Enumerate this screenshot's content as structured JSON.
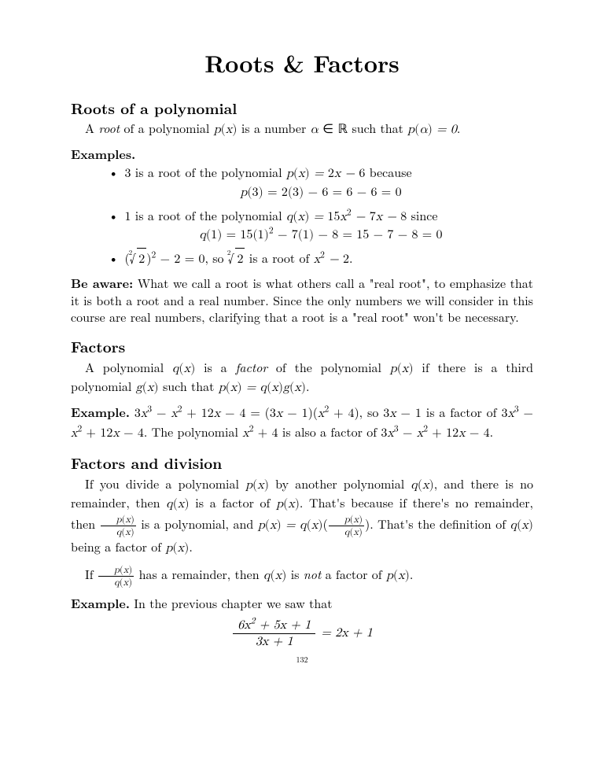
{
  "title": "Roots & Factors",
  "sec1": "Roots of a polynomial",
  "intro": "A <span class=\"it\">root</span> of a polynomial <span class=\"math\">p<span class=\"rm\">(</span>x<span class=\"rm\">)</span></span> is a number <span class=\"math\">α</span> ∈ ℝ such that <span class=\"math\">p<span class=\"rm\">(</span>α<span class=\"rm\">)</span> = 0</span>.",
  "examples_label": "Examples.",
  "ex1_line": "3 is a root of the polynomial <span class=\"math\">p<span class=\"rm\">(</span>x<span class=\"rm\">)</span> = <span class=\"rm\">2</span>x − <span class=\"rm\">6</span></span> because",
  "ex1_calc": "p<span class=\"rm\">(3) = 2(3) − 6 = 6 − 6 = 0</span>",
  "ex2_line": "1 is a root of the polynomial <span class=\"math\">q<span class=\"rm\">(</span>x<span class=\"rm\">)</span> = <span class=\"rm\">15</span>x<sup><span class=\"rm\">2</span></sup> − <span class=\"rm\">7</span>x − <span class=\"rm\">8</span></span> since",
  "ex2_calc": "q<span class=\"rm\">(1) = 15(1)<sup>2</sup> − 7(1) − 8 = 15 − 7 − 8 = 0</span>",
  "ex3_line": "(<span class=\"sqrt\"><span class=\"idx\">2</span>√<span class=\"rad\">2</span></span>)<sup>2</sup> − 2 = 0, so <span class=\"sqrt\"><span class=\"idx\">2</span>√<span class=\"rad\">2</span></span> is a root of <span class=\"math\">x<sup><span class=\"rm\">2</span></sup> − <span class=\"rm\">2</span></span>.",
  "beaware_label": "Be aware:",
  "beaware": "What we call a root is what others call a \"real root\", to emphasize that it is both a root and a real number. Since the only numbers we will consider in this course are real numbers, clarifying that a root is a \"real root\" won't be necessary.",
  "sec2": "Factors",
  "factors_para": "A polynomial <span class=\"math\">q<span class=\"rm\">(</span>x<span class=\"rm\">)</span></span> is a <span class=\"it\">factor</span> of the polynomial <span class=\"math\">p<span class=\"rm\">(</span>x<span class=\"rm\">)</span></span> if there is a third polynomial <span class=\"math\">g<span class=\"rm\">(</span>x<span class=\"rm\">)</span></span> such that <span class=\"math\">p<span class=\"rm\">(</span>x<span class=\"rm\">)</span> = q<span class=\"rm\">(</span>x<span class=\"rm\">)</span>g<span class=\"rm\">(</span>x<span class=\"rm\">)</span></span>.",
  "example_label": "Example.",
  "factors_example": "3<span class=\"math\">x</span><sup>3</sup> − <span class=\"math\">x</span><sup>2</sup> + 12<span class=\"math\">x</span> − 4 = (3<span class=\"math\">x</span> − 1)(<span class=\"math\">x</span><sup>2</sup> + 4), so 3<span class=\"math\">x</span> − 1 is a factor of 3<span class=\"math\">x</span><sup>3</sup> − <span class=\"math\">x</span><sup>2</sup> + 12<span class=\"math\">x</span> − 4. The polynomial <span class=\"math\">x</span><sup>2</sup> + 4 is also a factor of 3<span class=\"math\">x</span><sup>3</sup> − <span class=\"math\">x</span><sup>2</sup> + 12<span class=\"math\">x</span> − 4.",
  "sec3": "Factors and division",
  "div_para1": "If you divide a polynomial <span class=\"math\">p<span class=\"rm\">(</span>x<span class=\"rm\">)</span></span> by another polynomial <span class=\"math\">q<span class=\"rm\">(</span>x<span class=\"rm\">)</span></span>, and there is no remainder, then <span class=\"math\">q<span class=\"rm\">(</span>x<span class=\"rm\">)</span></span> is a factor of <span class=\"math\">p<span class=\"rm\">(</span>x<span class=\"rm\">)</span></span>.  That's because if there's no remainder, then <span class=\"frac\"><span class=\"num\"><span class=\"math\">p<span class=\"rm\">(</span>x<span class=\"rm\">)</span></span></span><span class=\"den\"><span class=\"math\">q<span class=\"rm\">(</span>x<span class=\"rm\">)</span></span></span></span> is a polynomial, and <span class=\"math\">p<span class=\"rm\">(</span>x<span class=\"rm\">)</span> = q<span class=\"rm\">(</span>x<span class=\"rm\">)</span></span>(<span class=\"frac\"><span class=\"num\"><span class=\"math\">p<span class=\"rm\">(</span>x<span class=\"rm\">)</span></span></span><span class=\"den\"><span class=\"math\">q<span class=\"rm\">(</span>x<span class=\"rm\">)</span></span></span></span>).  That's the definition of <span class=\"math\">q<span class=\"rm\">(</span>x<span class=\"rm\">)</span></span> being a factor of <span class=\"math\">p<span class=\"rm\">(</span>x<span class=\"rm\">)</span></span>.",
  "div_para2": "If <span class=\"frac\"><span class=\"num\"><span class=\"math\">p<span class=\"rm\">(</span>x<span class=\"rm\">)</span></span></span><span class=\"den\"><span class=\"math\">q<span class=\"rm\">(</span>x<span class=\"rm\">)</span></span></span></span> has a remainder, then <span class=\"math\">q<span class=\"rm\">(</span>x<span class=\"rm\">)</span></span> is <span class=\"it\">not</span> a factor of <span class=\"math\">p<span class=\"rm\">(</span>x<span class=\"rm\">)</span></span>.",
  "div_example_intro": "In the previous chapter we saw that",
  "div_example_num": "6<span class=\"math\">x</span><sup>2</sup> + 5<span class=\"math\">x</span> + 1",
  "div_example_den": "3<span class=\"math\">x</span> + 1",
  "div_example_rhs": " = 2<span class=\"math\">x</span> + 1",
  "pagenum": "132"
}
